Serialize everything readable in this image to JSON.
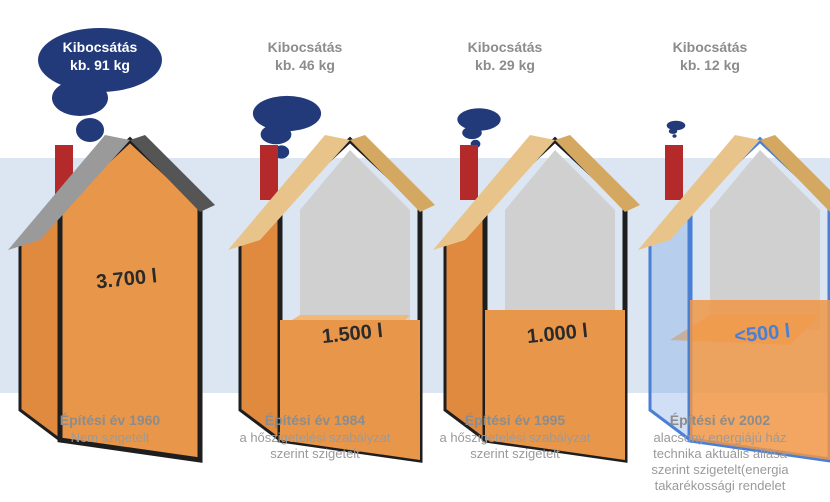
{
  "houses": [
    {
      "emission": [
        "Kibocsátás",
        "kb. 91 kg"
      ],
      "volume": "3.700 l",
      "year": "Építési év 1960",
      "description": [
        "Nem szigetelt"
      ]
    },
    {
      "emission": [
        "Kibocsátás",
        "kb. 46 kg"
      ],
      "volume": "1.500 l",
      "year": "Építési év 1984",
      "description": [
        "a hőszigetelési szabályzat",
        "szerint szigetelt"
      ]
    },
    {
      "emission": [
        "Kibocsátás",
        "kb. 29 kg"
      ],
      "volume": "1.000 l",
      "year": "Építési év 1995",
      "description": [
        "a hőszigetelési szabályzat",
        "szerint szigetelt"
      ]
    },
    {
      "emission": [
        "Kibocsátás",
        "kb. 12 kg"
      ],
      "volume": "<500 l",
      "year": "Építési év 2002",
      "description": [
        "alacsony energiájú ház",
        "technika aktuális állása",
        "szerint szigetelt(energia",
        "takarékossági rendelet"
      ]
    }
  ]
}
